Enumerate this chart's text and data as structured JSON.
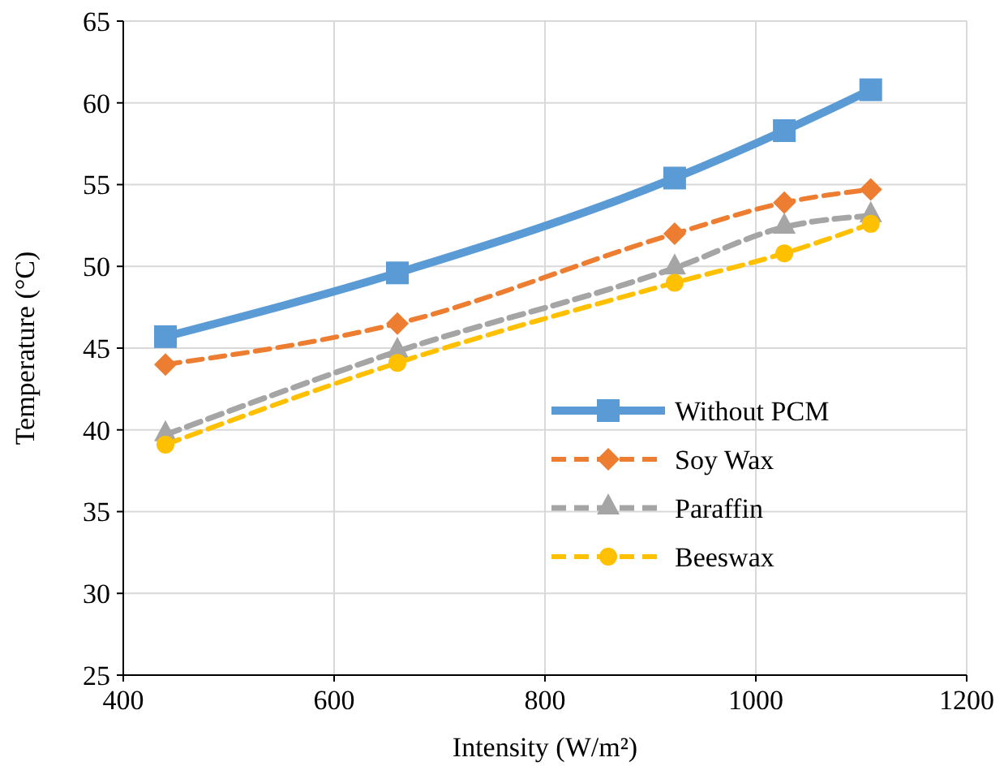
{
  "chart_data": {
    "type": "line",
    "xlabel": "Intensity (W/m²)",
    "ylabel": "Temperature (°C)",
    "x": [
      440,
      660,
      923,
      1027,
      1109
    ],
    "series": [
      {
        "name": "Without PCM",
        "color": "#5b9bd5",
        "values": [
          45.7,
          49.6,
          55.4,
          58.3,
          60.8
        ],
        "marker": "square",
        "line_style": "solid"
      },
      {
        "name": "Soy Wax",
        "color": "#ed7d31",
        "values": [
          44.0,
          46.5,
          52.0,
          53.9,
          54.7
        ],
        "marker": "diamond",
        "line_style": "dashed"
      },
      {
        "name": "Paraffin",
        "color": "#a5a5a5",
        "values": [
          39.7,
          44.8,
          49.9,
          52.4,
          53.1
        ],
        "marker": "triangle",
        "line_style": "dashed"
      },
      {
        "name": "Beeswax",
        "color": "#ffc000",
        "values": [
          39.1,
          44.1,
          49.0,
          50.8,
          52.6
        ],
        "marker": "circle",
        "line_style": "dashed"
      }
    ],
    "xlim": [
      400,
      1200
    ],
    "xticks": [
      400,
      600,
      800,
      1000,
      1200
    ],
    "ylim": [
      25,
      65
    ],
    "yticks": [
      25,
      30,
      35,
      40,
      45,
      50,
      55,
      60,
      65
    ],
    "grid": true,
    "legend": "right"
  }
}
